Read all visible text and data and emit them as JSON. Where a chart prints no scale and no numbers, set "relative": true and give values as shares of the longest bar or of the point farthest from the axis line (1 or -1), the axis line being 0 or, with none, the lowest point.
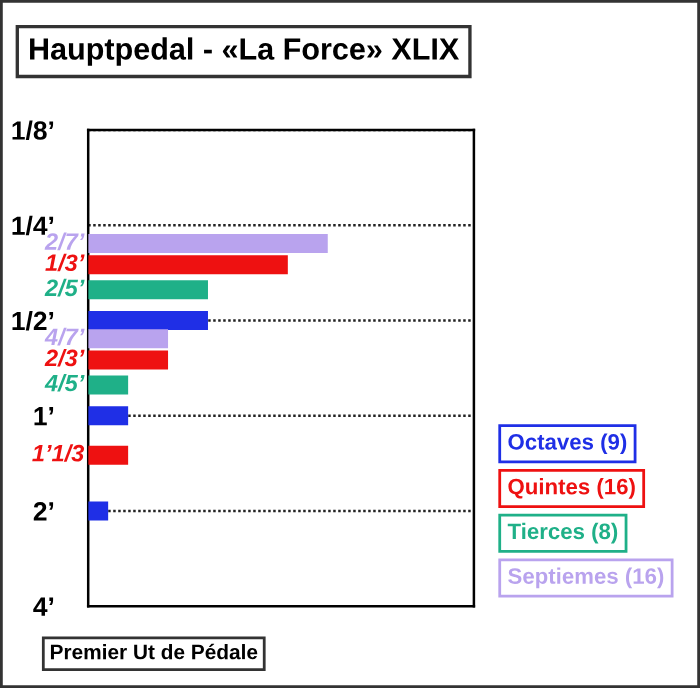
{
  "chart_data": {
    "type": "bar",
    "orientation": "horizontal",
    "relative": true,
    "title": "Hauptpedal - «La Force» XLIX",
    "series": [
      {
        "name": "Octaves (9)",
        "color": "#1f2fe6",
        "x": [
          0.5,
          1,
          2
        ],
        "values": [
          0.5,
          0.1667,
          0.0833
        ]
      },
      {
        "name": "Quintes (16)",
        "color": "#ee1111",
        "x": [
          0.3333,
          0.6667,
          1.3333
        ],
        "values": [
          0.8333,
          0.3333,
          0.1667
        ]
      },
      {
        "name": "Tierces (8)",
        "color": "#1fb088",
        "x": [
          0.4,
          0.8
        ],
        "values": [
          0.5,
          0.1667
        ]
      },
      {
        "name": "Septiemes (16)",
        "color": "#b9a3ee",
        "x": [
          0.2857,
          0.5714
        ],
        "values": [
          1,
          0.3333
        ]
      }
    ],
    "log": "y",
    "ylim": [
      4,
      0.125
    ],
    "yticks": [
      {
        "value": 0.125,
        "label": "1/8’"
      },
      {
        "value": 0.25,
        "label": "1/4’"
      },
      {
        "value": 0.5,
        "label": "1/2’"
      },
      {
        "value": 1,
        "label": "1’"
      },
      {
        "value": 2,
        "label": "2’"
      },
      {
        "value": 4,
        "label": "4’"
      }
    ],
    "grid": "y",
    "annotations": [
      "2/7’",
      "1/3’",
      "2/5’",
      "4/7’",
      "2/3’",
      "4/5’",
      "1’1/3",
      "Premier Ut de Pédale"
    ]
  }
}
